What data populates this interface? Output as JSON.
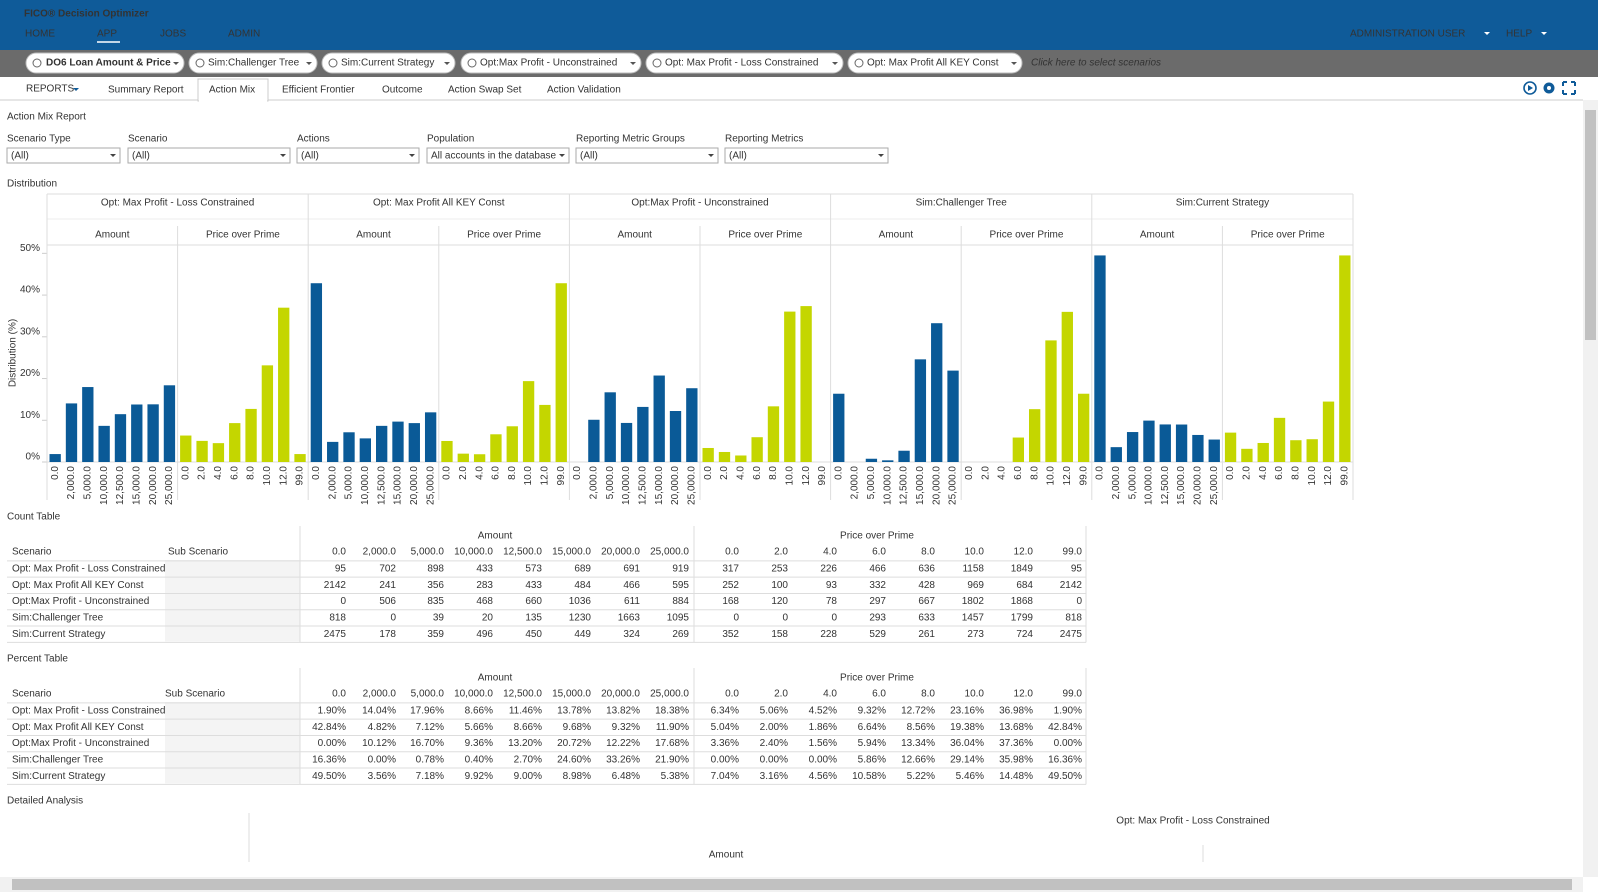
{
  "header": {
    "title": "FICO® Decision Optimizer",
    "nav": [
      "HOME",
      "APP",
      "JOBS",
      "ADMIN"
    ],
    "active_nav": 1,
    "user_menu": [
      "ADMINISTRATION USER",
      "HELP"
    ]
  },
  "scenario_bar": {
    "project": "DO6 Loan Amount & Price",
    "scenarios": [
      "Sim:Challenger Tree",
      "Sim:Current Strategy",
      "Opt:Max Profit - Unconstrained",
      "Opt: Max Profit - Loss Constrained",
      "Opt: Max Profit All KEY Const"
    ],
    "placeholder": "Click here to select scenarios"
  },
  "tabs": {
    "menu": "REPORTS",
    "items": [
      "Summary Report",
      "Action Mix",
      "Efficient Frontier",
      "Outcome",
      "Action Swap Set",
      "Action Validation"
    ],
    "active": 1
  },
  "report_title": "Action Mix Report",
  "filters": [
    {
      "label": "Scenario Type",
      "value": "(All)"
    },
    {
      "label": "Scenario",
      "value": "(All)"
    },
    {
      "label": "Actions",
      "value": "(All)"
    },
    {
      "label": "Population",
      "value": "All accounts in the database"
    },
    {
      "label": "Reporting Metric Groups",
      "value": "(All)"
    },
    {
      "label": "Reporting Metrics",
      "value": "(All)"
    }
  ],
  "chart_data": {
    "type": "bar",
    "title": "Distribution",
    "y_label": "Distribution (%)",
    "ylim": [
      0,
      52
    ],
    "yticks": [
      {
        "value": 0,
        "label": "0%"
      },
      {
        "value": 10,
        "label": "10%"
      },
      {
        "value": 20,
        "label": "20%"
      },
      {
        "value": 30,
        "label": "30%"
      },
      {
        "value": 40,
        "label": "40%"
      },
      {
        "value": 50,
        "label": "50%"
      }
    ],
    "group_names": [
      "Amount",
      "Price over Prime"
    ],
    "group_colors": [
      "#0a5a97",
      "#c4d600"
    ],
    "group_categories": [
      [
        "0.0",
        "2,000.0",
        "5,000.0",
        "10,000.0",
        "12,500.0",
        "15,000.0",
        "20,000.0",
        "25,000.0"
      ],
      [
        "0.0",
        "2.0",
        "4.0",
        "6.0",
        "8.0",
        "10.0",
        "12.0",
        "99.0"
      ]
    ],
    "panels": [
      {
        "name": "Opt: Max Profit - Loss Constrained",
        "series": [
          [
            1.9,
            14.04,
            17.96,
            8.66,
            11.46,
            13.78,
            13.82,
            18.38
          ],
          [
            6.34,
            5.06,
            4.52,
            9.32,
            12.72,
            23.16,
            36.98,
            1.9
          ]
        ]
      },
      {
        "name": "Opt: Max Profit All KEY Const",
        "series": [
          [
            42.84,
            4.82,
            7.12,
            5.66,
            8.66,
            9.68,
            9.32,
            11.9
          ],
          [
            5.04,
            2.0,
            1.86,
            6.64,
            8.56,
            19.38,
            13.68,
            42.84
          ]
        ]
      },
      {
        "name": "Opt:Max Profit - Unconstrained",
        "series": [
          [
            0.0,
            10.12,
            16.7,
            9.36,
            13.2,
            20.72,
            12.22,
            17.68
          ],
          [
            3.36,
            2.4,
            1.56,
            5.94,
            13.34,
            36.04,
            37.36,
            0.0
          ]
        ]
      },
      {
        "name": "Sim:Challenger Tree",
        "series": [
          [
            16.36,
            0.0,
            0.78,
            0.4,
            2.7,
            24.6,
            33.26,
            21.9
          ],
          [
            0.0,
            0.0,
            0.0,
            5.86,
            12.66,
            29.14,
            35.98,
            16.36
          ]
        ]
      },
      {
        "name": "Sim:Current Strategy",
        "series": [
          [
            49.5,
            3.56,
            7.18,
            9.92,
            9.0,
            8.98,
            6.48,
            5.38
          ],
          [
            7.04,
            3.16,
            4.56,
            10.58,
            5.22,
            5.46,
            14.48,
            49.5
          ]
        ]
      }
    ]
  },
  "count_table": {
    "title": "Count Table",
    "scenario_header": "Scenario",
    "sub_scenario_header": "Sub Scenario",
    "rows": [
      {
        "scenario": "Opt: Max Profit - Loss Constrained",
        "cells": [
          95,
          702,
          898,
          433,
          573,
          689,
          691,
          919,
          317,
          253,
          226,
          466,
          636,
          1158,
          1849,
          95
        ]
      },
      {
        "scenario": "Opt: Max Profit All KEY Const",
        "cells": [
          2142,
          241,
          356,
          283,
          433,
          484,
          466,
          595,
          252,
          100,
          93,
          332,
          428,
          969,
          684,
          2142
        ]
      },
      {
        "scenario": "Opt:Max Profit - Unconstrained",
        "cells": [
          0,
          506,
          835,
          468,
          660,
          1036,
          611,
          884,
          168,
          120,
          78,
          297,
          667,
          1802,
          1868,
          0
        ]
      },
      {
        "scenario": "Sim:Challenger Tree",
        "cells": [
          818,
          0,
          39,
          20,
          135,
          1230,
          1663,
          1095,
          0,
          0,
          0,
          293,
          633,
          1457,
          1799,
          818
        ]
      },
      {
        "scenario": "Sim:Current Strategy",
        "cells": [
          2475,
          178,
          359,
          496,
          450,
          449,
          324,
          269,
          352,
          158,
          228,
          529,
          261,
          273,
          724,
          2475
        ]
      }
    ]
  },
  "percent_table": {
    "title": "Percent Table",
    "scenario_header": "Scenario",
    "sub_scenario_header": "Sub Scenario",
    "rows": [
      {
        "scenario": "Opt: Max Profit - Loss Constrained",
        "cells": [
          "1.90%",
          "14.04%",
          "17.96%",
          "8.66%",
          "11.46%",
          "13.78%",
          "13.82%",
          "18.38%",
          "6.34%",
          "5.06%",
          "4.52%",
          "9.32%",
          "12.72%",
          "23.16%",
          "36.98%",
          "1.90%"
        ]
      },
      {
        "scenario": "Opt: Max Profit All KEY Const",
        "cells": [
          "42.84%",
          "4.82%",
          "7.12%",
          "5.66%",
          "8.66%",
          "9.68%",
          "9.32%",
          "11.90%",
          "5.04%",
          "2.00%",
          "1.86%",
          "6.64%",
          "8.56%",
          "19.38%",
          "13.68%",
          "42.84%"
        ]
      },
      {
        "scenario": "Opt:Max Profit - Unconstrained",
        "cells": [
          "0.00%",
          "10.12%",
          "16.70%",
          "9.36%",
          "13.20%",
          "20.72%",
          "12.22%",
          "17.68%",
          "3.36%",
          "2.40%",
          "1.56%",
          "5.94%",
          "13.34%",
          "36.04%",
          "37.36%",
          "0.00%"
        ]
      },
      {
        "scenario": "Sim:Challenger Tree",
        "cells": [
          "16.36%",
          "0.00%",
          "0.78%",
          "0.40%",
          "2.70%",
          "24.60%",
          "33.26%",
          "21.90%",
          "0.00%",
          "0.00%",
          "0.00%",
          "5.86%",
          "12.66%",
          "29.14%",
          "35.98%",
          "16.36%"
        ]
      },
      {
        "scenario": "Sim:Current Strategy",
        "cells": [
          "49.50%",
          "3.56%",
          "7.18%",
          "9.92%",
          "9.00%",
          "8.98%",
          "6.48%",
          "5.38%",
          "7.04%",
          "3.16%",
          "4.56%",
          "10.58%",
          "5.22%",
          "5.46%",
          "14.48%",
          "49.50%"
        ]
      }
    ]
  },
  "detailed_analysis": {
    "title": "Detailed Analysis",
    "panel": "Opt: Max Profit - Loss Constrained",
    "group": "Amount"
  }
}
